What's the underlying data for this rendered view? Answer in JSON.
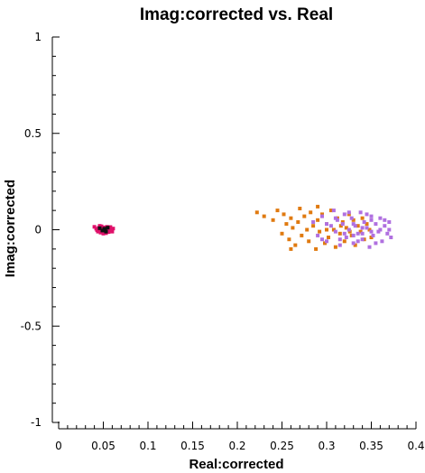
{
  "chart_data": {
    "type": "scatter",
    "title": "Imag:corrected vs. Real",
    "xlabel": "Real:corrected",
    "ylabel": "Imag:corrected",
    "xlim": [
      0,
      0.4
    ],
    "ylim": [
      -1,
      1
    ],
    "x_ticks": [
      "0",
      "0.05",
      "0.1",
      "0.15",
      "0.2",
      "0.25",
      "0.3",
      "0.35",
      "0.4"
    ],
    "y_ticks": [
      "1",
      "0.5",
      "0",
      "-0.5",
      "-1"
    ],
    "grid": false,
    "legend": "none",
    "series": [
      {
        "color": "#e0106a",
        "points": [
          [
            0.04,
            0.015
          ],
          [
            0.042,
            0.005
          ],
          [
            0.044,
            -0.01
          ],
          [
            0.045,
            0.01
          ],
          [
            0.046,
            0.0
          ],
          [
            0.047,
            -0.015
          ],
          [
            0.048,
            0.018
          ],
          [
            0.049,
            0.006
          ],
          [
            0.05,
            -0.008
          ],
          [
            0.051,
            0.012
          ],
          [
            0.052,
            -0.002
          ],
          [
            0.053,
            -0.018
          ],
          [
            0.054,
            0.015
          ],
          [
            0.055,
            0.004
          ],
          [
            0.056,
            -0.012
          ],
          [
            0.057,
            0.01
          ],
          [
            0.058,
            -0.005
          ],
          [
            0.059,
            0.002
          ],
          [
            0.06,
            -0.01
          ],
          [
            0.061,
            0.006
          ],
          [
            0.043,
            -0.003
          ],
          [
            0.046,
            0.02
          ],
          [
            0.05,
            -0.02
          ],
          [
            0.054,
            -0.006
          ],
          [
            0.058,
            0.014
          ]
        ]
      },
      {
        "color": "#111111",
        "points": [
          [
            0.046,
            0.008
          ],
          [
            0.049,
            -0.004
          ],
          [
            0.051,
            0.005
          ],
          [
            0.053,
            -0.01
          ],
          [
            0.055,
            0.011
          ],
          [
            0.052,
            0.001
          ]
        ]
      },
      {
        "color": "#e07a10",
        "points": [
          [
            0.222,
            0.09
          ],
          [
            0.23,
            0.07
          ],
          [
            0.24,
            0.05
          ],
          [
            0.245,
            0.1
          ],
          [
            0.25,
            -0.02
          ],
          [
            0.252,
            0.08
          ],
          [
            0.255,
            0.03
          ],
          [
            0.258,
            -0.05
          ],
          [
            0.26,
            0.06
          ],
          [
            0.262,
            0.01
          ],
          [
            0.265,
            -0.08
          ],
          [
            0.268,
            0.04
          ],
          [
            0.27,
            0.11
          ],
          [
            0.272,
            -0.03
          ],
          [
            0.275,
            0.07
          ],
          [
            0.278,
            0.0
          ],
          [
            0.28,
            -0.06
          ],
          [
            0.282,
            0.09
          ],
          [
            0.285,
            0.02
          ],
          [
            0.288,
            -0.1
          ],
          [
            0.29,
            0.05
          ],
          [
            0.292,
            -0.01
          ],
          [
            0.295,
            0.08
          ],
          [
            0.298,
            -0.07
          ],
          [
            0.3,
            0.03
          ],
          [
            0.302,
            -0.04
          ],
          [
            0.305,
            0.1
          ],
          [
            0.308,
            0.0
          ],
          [
            0.31,
            -0.09
          ],
          [
            0.312,
            0.06
          ],
          [
            0.315,
            -0.02
          ],
          [
            0.318,
            0.04
          ],
          [
            0.32,
            -0.06
          ],
          [
            0.322,
            0.01
          ],
          [
            0.325,
            0.08
          ],
          [
            0.328,
            -0.03
          ],
          [
            0.33,
            0.05
          ],
          [
            0.332,
            -0.08
          ],
          [
            0.335,
            0.02
          ],
          [
            0.338,
            -0.01
          ],
          [
            0.34,
            0.06
          ],
          [
            0.342,
            -0.05
          ],
          [
            0.345,
            0.03
          ],
          [
            0.348,
            0.0
          ],
          [
            0.35,
            -0.04
          ],
          [
            0.29,
            0.12
          ],
          [
            0.26,
            -0.1
          ],
          [
            0.3,
            0.0
          ],
          [
            0.316,
            0.02
          ],
          [
            0.326,
            -0.01
          ]
        ]
      },
      {
        "color": "#b070e0",
        "points": [
          [
            0.285,
            0.04
          ],
          [
            0.29,
            -0.03
          ],
          [
            0.295,
            0.07
          ],
          [
            0.3,
            -0.06
          ],
          [
            0.305,
            0.02
          ],
          [
            0.308,
            0.1
          ],
          [
            0.31,
            -0.01
          ],
          [
            0.312,
            0.05
          ],
          [
            0.315,
            -0.08
          ],
          [
            0.318,
            0.03
          ],
          [
            0.32,
            0.08
          ],
          [
            0.322,
            -0.04
          ],
          [
            0.325,
            0.0
          ],
          [
            0.328,
            0.06
          ],
          [
            0.33,
            -0.07
          ],
          [
            0.332,
            0.02
          ],
          [
            0.335,
            -0.02
          ],
          [
            0.338,
            0.09
          ],
          [
            0.34,
            -0.05
          ],
          [
            0.342,
            0.04
          ],
          [
            0.345,
            0.01
          ],
          [
            0.348,
            -0.09
          ],
          [
            0.35,
            0.07
          ],
          [
            0.352,
            -0.03
          ],
          [
            0.355,
            0.03
          ],
          [
            0.358,
            -0.01
          ],
          [
            0.36,
            0.06
          ],
          [
            0.362,
            -0.06
          ],
          [
            0.365,
            0.02
          ],
          [
            0.368,
            -0.02
          ],
          [
            0.37,
            0.04
          ],
          [
            0.372,
            -0.04
          ],
          [
            0.36,
            0.0
          ],
          [
            0.35,
            0.05
          ],
          [
            0.34,
            -0.02
          ],
          [
            0.33,
            0.03
          ],
          [
            0.32,
            -0.02
          ],
          [
            0.31,
            0.06
          ],
          [
            0.3,
            0.03
          ],
          [
            0.295,
            -0.05
          ],
          [
            0.355,
            -0.07
          ],
          [
            0.345,
            0.08
          ],
          [
            0.335,
            -0.06
          ],
          [
            0.325,
            0.09
          ],
          [
            0.315,
            -0.05
          ],
          [
            0.365,
            0.05
          ],
          [
            0.37,
            0.0
          ],
          [
            0.34,
            0.01
          ],
          [
            0.33,
            -0.03
          ],
          [
            0.35,
            -0.01
          ]
        ]
      }
    ]
  }
}
